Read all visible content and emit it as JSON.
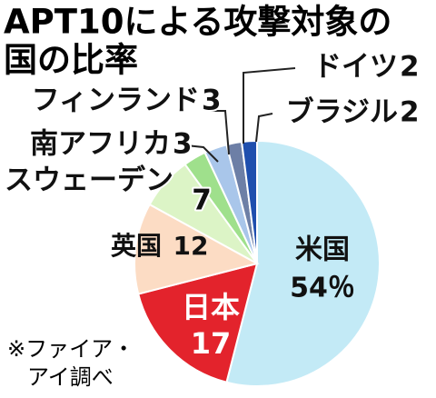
{
  "chart_data": {
    "type": "pie",
    "title": [
      "APT10による攻撃対象の",
      "国の比率"
    ],
    "categories": [
      "米国",
      "日本",
      "英国",
      "スウェーデン",
      "南アフリカ",
      "フィンランド",
      "ドイツ",
      "ブラジル"
    ],
    "values": [
      54,
      17,
      12,
      7,
      3,
      3,
      2,
      2
    ],
    "value_labels": [
      "54％",
      "17",
      "12",
      "7",
      "3",
      "3",
      "2",
      "2"
    ],
    "colors": [
      "#c3eaf6",
      "#e3232c",
      "#fcdcc4",
      "#dcf4c6",
      "#9fe08c",
      "#a9c6ea",
      "#6d7fa6",
      "#1f4fae"
    ],
    "source": [
      "※ファイア・",
      "アイ調べ"
    ]
  }
}
